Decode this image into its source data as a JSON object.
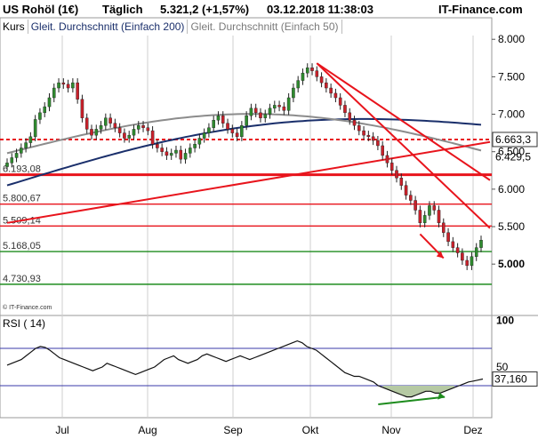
{
  "header": {
    "instrument": "US Rohöl (1€)",
    "interval": "Täglich",
    "quote": "5.321,2 (+1,57%)",
    "datetime": "03.12.2018 11:38:03",
    "brand": "IT-Finance.com"
  },
  "legend": {
    "kurs": "Kurs",
    "ma200": "Gleit. Durchschnitt (Einfach 200)",
    "ma50": "Gleit. Durchschnitt (Einfach 50)"
  },
  "watermark": "© IT-Finance.com",
  "colors": {
    "up": "#2e8b2e",
    "down": "#c8202a",
    "ma200": "#1a2f6b",
    "ma50": "#8c8c8c",
    "red_line": "#e8141c",
    "green_line": "#1e8c1e",
    "rsi_line": "#111111",
    "rsi_fill": "#b5c9a3",
    "rsi_band": "#3a3aa8"
  },
  "chart_data": [
    {
      "type": "candlestick",
      "title": "",
      "ylim": [
        4.35,
        8.05
      ],
      "y_scale": "linear",
      "y_ticks": [
        "8.000",
        "7.500",
        "7.000",
        "6.500",
        "6.000",
        "5.500",
        "5.000"
      ],
      "x_ticks": [
        "Jul",
        "Aug",
        "Sep",
        "Okt",
        "Nov",
        "Dez"
      ],
      "grid": "vertical",
      "close_series": [
        6.35,
        6.42,
        6.48,
        6.55,
        6.62,
        6.7,
        6.93,
        7.02,
        7.1,
        7.22,
        7.35,
        7.42,
        7.4,
        7.35,
        7.42,
        7.2,
        6.95,
        6.8,
        6.72,
        6.8,
        6.85,
        6.95,
        6.88,
        6.82,
        6.75,
        6.68,
        6.72,
        6.8,
        6.85,
        6.82,
        6.78,
        6.6,
        6.55,
        6.5,
        6.45,
        6.48,
        6.52,
        6.4,
        6.48,
        6.55,
        6.6,
        6.68,
        6.75,
        6.82,
        6.92,
        6.98,
        6.88,
        6.8,
        6.75,
        6.7,
        6.85,
        6.98,
        7.08,
        7.02,
        6.95,
        7.0,
        7.08,
        7.12,
        7.1,
        7.05,
        7.22,
        7.35,
        7.45,
        7.55,
        7.62,
        7.58,
        7.5,
        7.42,
        7.35,
        7.28,
        7.22,
        7.12,
        7.02,
        6.92,
        6.85,
        6.78,
        6.72,
        6.7,
        6.65,
        6.58,
        6.45,
        6.35,
        6.25,
        6.15,
        6.05,
        5.92,
        5.85,
        5.72,
        5.55,
        5.65,
        5.78,
        5.72,
        5.55,
        5.42,
        5.3,
        5.22,
        5.15,
        5.05,
        4.98,
        5.1,
        5.22,
        5.32
      ],
      "moving_averages": [
        {
          "name": "Gleit. Durchschnitt (Einfach 200)",
          "start": 6.05,
          "end": 6.72
        },
        {
          "name": "Gleit. Durchschnitt (Einfach 50)",
          "start": 6.48,
          "end": 6.43
        }
      ],
      "price_labels": [
        {
          "text": "6.663,3",
          "value": 6.663,
          "boxed": true
        },
        {
          "text": "6.429,5",
          "value": 6.43,
          "boxed": false
        }
      ],
      "horizontal_lines": [
        {
          "label": "6.193,08",
          "value": 6.193,
          "color": "red"
        },
        {
          "label": "5.800,67",
          "value": 5.801,
          "color": "red"
        },
        {
          "label": "5.509,14",
          "value": 5.509,
          "color": "red"
        },
        {
          "label": "5.168,05",
          "value": 5.168,
          "color": "green"
        },
        {
          "label": "4.730,93",
          "value": 4.731,
          "color": "green"
        }
      ],
      "dashed_line": {
        "value": 6.663,
        "color": "red"
      },
      "trend_lines": [
        {
          "from": [
            0,
            5.55
          ],
          "to": [
            101,
            6.63
          ]
        },
        {
          "from": [
            66,
            7.68
          ],
          "to": [
            101,
            6.12
          ]
        },
        {
          "from": [
            66,
            7.68
          ],
          "to": [
            101,
            5.48
          ]
        }
      ],
      "annotations": [
        {
          "type": "arrow",
          "color": "red",
          "from": [
            88,
            5.4
          ],
          "to": [
            93,
            5.08
          ]
        }
      ]
    },
    {
      "type": "line",
      "title": "RSI ( 14)",
      "ylim": [
        0,
        100
      ],
      "y_ticks": [
        "100",
        "50"
      ],
      "bands": [
        70,
        30
      ],
      "last_value_label": "37,160",
      "last_value": 37.16,
      "values": [
        52,
        54,
        56,
        58,
        62,
        66,
        70,
        72,
        71,
        68,
        64,
        60,
        58,
        56,
        54,
        52,
        50,
        48,
        46,
        48,
        50,
        54,
        52,
        50,
        48,
        46,
        44,
        42,
        44,
        46,
        48,
        50,
        54,
        58,
        60,
        62,
        58,
        56,
        54,
        56,
        58,
        62,
        64,
        62,
        60,
        58,
        56,
        58,
        60,
        62,
        60,
        58,
        60,
        62,
        64,
        66,
        68,
        70,
        72,
        74,
        76,
        78,
        76,
        72,
        70,
        68,
        64,
        60,
        56,
        52,
        48,
        44,
        42,
        40,
        40,
        38,
        36,
        34,
        30,
        28,
        26,
        24,
        22,
        20,
        18,
        18,
        20,
        22,
        24,
        24,
        22,
        22,
        24,
        26,
        28,
        30,
        32,
        34,
        35,
        36,
        37.16
      ],
      "annotations": [
        {
          "type": "arrow",
          "color": "green",
          "from": [
            78,
            10
          ],
          "to": [
            92,
            18
          ]
        }
      ]
    }
  ]
}
